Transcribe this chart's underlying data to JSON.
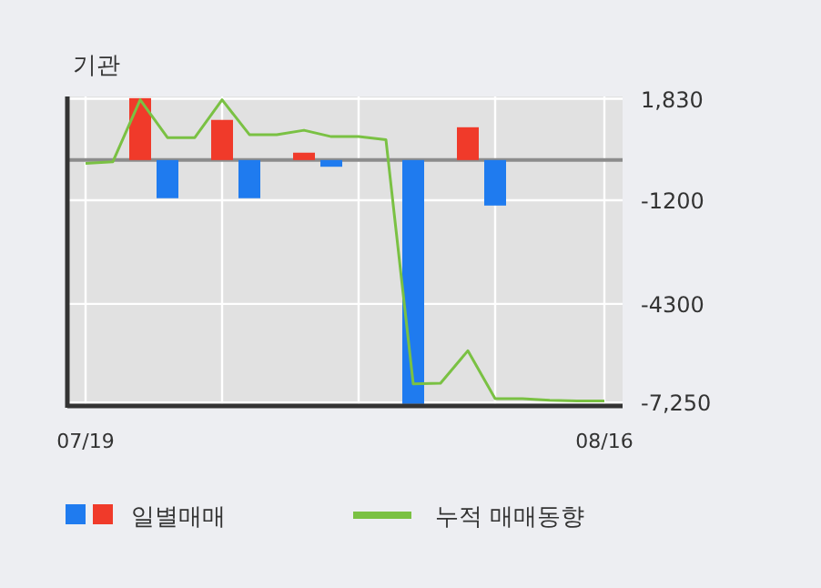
{
  "chart_data": {
    "type": "bar",
    "title": "기관",
    "categories": [
      "07/19",
      null,
      null,
      null,
      null,
      null,
      null,
      null,
      null,
      null,
      null,
      null,
      null,
      null,
      null,
      null,
      null,
      null,
      null,
      "08/16"
    ],
    "series": [
      {
        "name": "일별매매",
        "colors": [
          "#f03a2a",
          "#f03a2a",
          "#f03a2a",
          "#1f7bef",
          "#f03a2a",
          "#f03a2a",
          "#1f7bef",
          "#f03a2a",
          "#f03a2a",
          "#1f7bef",
          "#f03a2a",
          "#f03a2a",
          "#1f7bef",
          "#f03a2a",
          "#f03a2a",
          "#1f7bef",
          "#f03a2a",
          "#f03a2a",
          "#f03a2a",
          "#f03a2a"
        ],
        "values": [
          0,
          0,
          1850,
          -1140,
          0,
          1200,
          -1140,
          0,
          220,
          -200,
          0,
          0,
          -7290,
          0,
          980,
          -1360,
          0,
          0,
          0,
          0
        ]
      },
      {
        "name": "누적 매매동향",
        "type": "line",
        "color": "#7ac143",
        "values": [
          -100,
          -50,
          1800,
          670,
          670,
          1800,
          760,
          760,
          890,
          700,
          700,
          610,
          -6690,
          -6670,
          -5700,
          -7130,
          -7130,
          -7180,
          -7200,
          -7200
        ]
      }
    ],
    "ylim": [
      -7350,
      1900
    ],
    "yticks": [
      {
        "value": 1830,
        "label": "1,830"
      },
      -1200,
      -4300,
      {
        "value": -7250,
        "label": "-7,250"
      }
    ],
    "ref_lines": [
      {
        "axis": "y",
        "value": 0,
        "color": "#8c8c8c"
      }
    ],
    "grid": true,
    "legend": "bottom"
  }
}
